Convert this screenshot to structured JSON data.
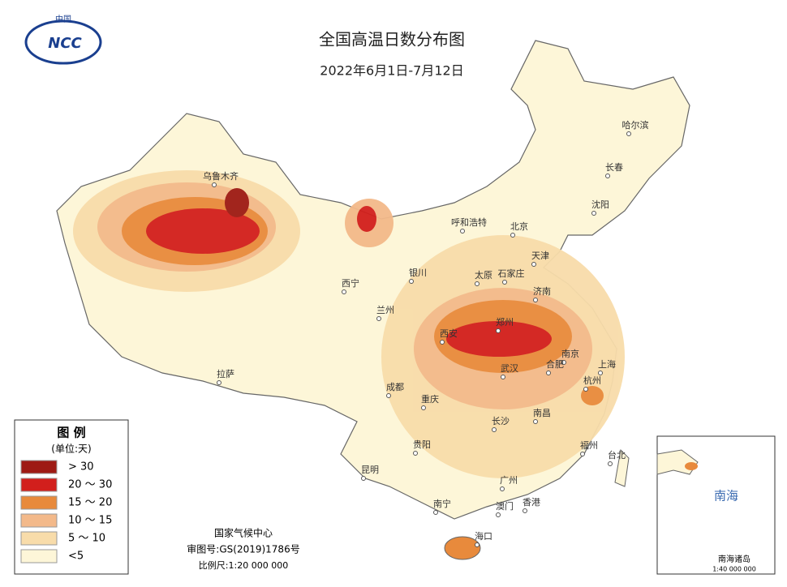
{
  "header": {
    "title": "全国高温日数分布图",
    "subtitle": "2022年6月1日-7月12日",
    "logo_text": "中国",
    "logo_abbr": "NCC"
  },
  "legend": {
    "title": "图 例",
    "unit": "(单位:天)",
    "items": [
      {
        "label": "> 30",
        "color": "#9e1a14"
      },
      {
        "label": "20 ～ 30",
        "color": "#d21f1c"
      },
      {
        "label": "15 ～ 20",
        "color": "#e88a3c"
      },
      {
        "label": "10 ～ 15",
        "color": "#f3b98a"
      },
      {
        "label": "5 ～ 10",
        "color": "#f8dcaa"
      },
      {
        "label": "<5",
        "color": "#fdf6d8"
      }
    ]
  },
  "cities": [
    "乌鲁木齐",
    "哈尔滨",
    "长春",
    "沈阳",
    "呼和浩特",
    "北京",
    "天津",
    "石家庄",
    "太原",
    "银川",
    "济南",
    "西宁",
    "兰州",
    "西安",
    "郑州",
    "南京",
    "上海",
    "合肥",
    "武汉",
    "杭州",
    "拉萨",
    "成都",
    "重庆",
    "南昌",
    "长沙",
    "贵阳",
    "福州",
    "台北",
    "昆明",
    "广州",
    "南宁",
    "澳门",
    "香港",
    "海口"
  ],
  "credits": {
    "agency": "国家气候中心",
    "review": "审图号:GS(2019)1786号",
    "scale": "比例尺:1:20 000 000"
  },
  "inset": {
    "label": "南海",
    "islands": "南海诸岛",
    "scale": "1:40 000 000"
  }
}
